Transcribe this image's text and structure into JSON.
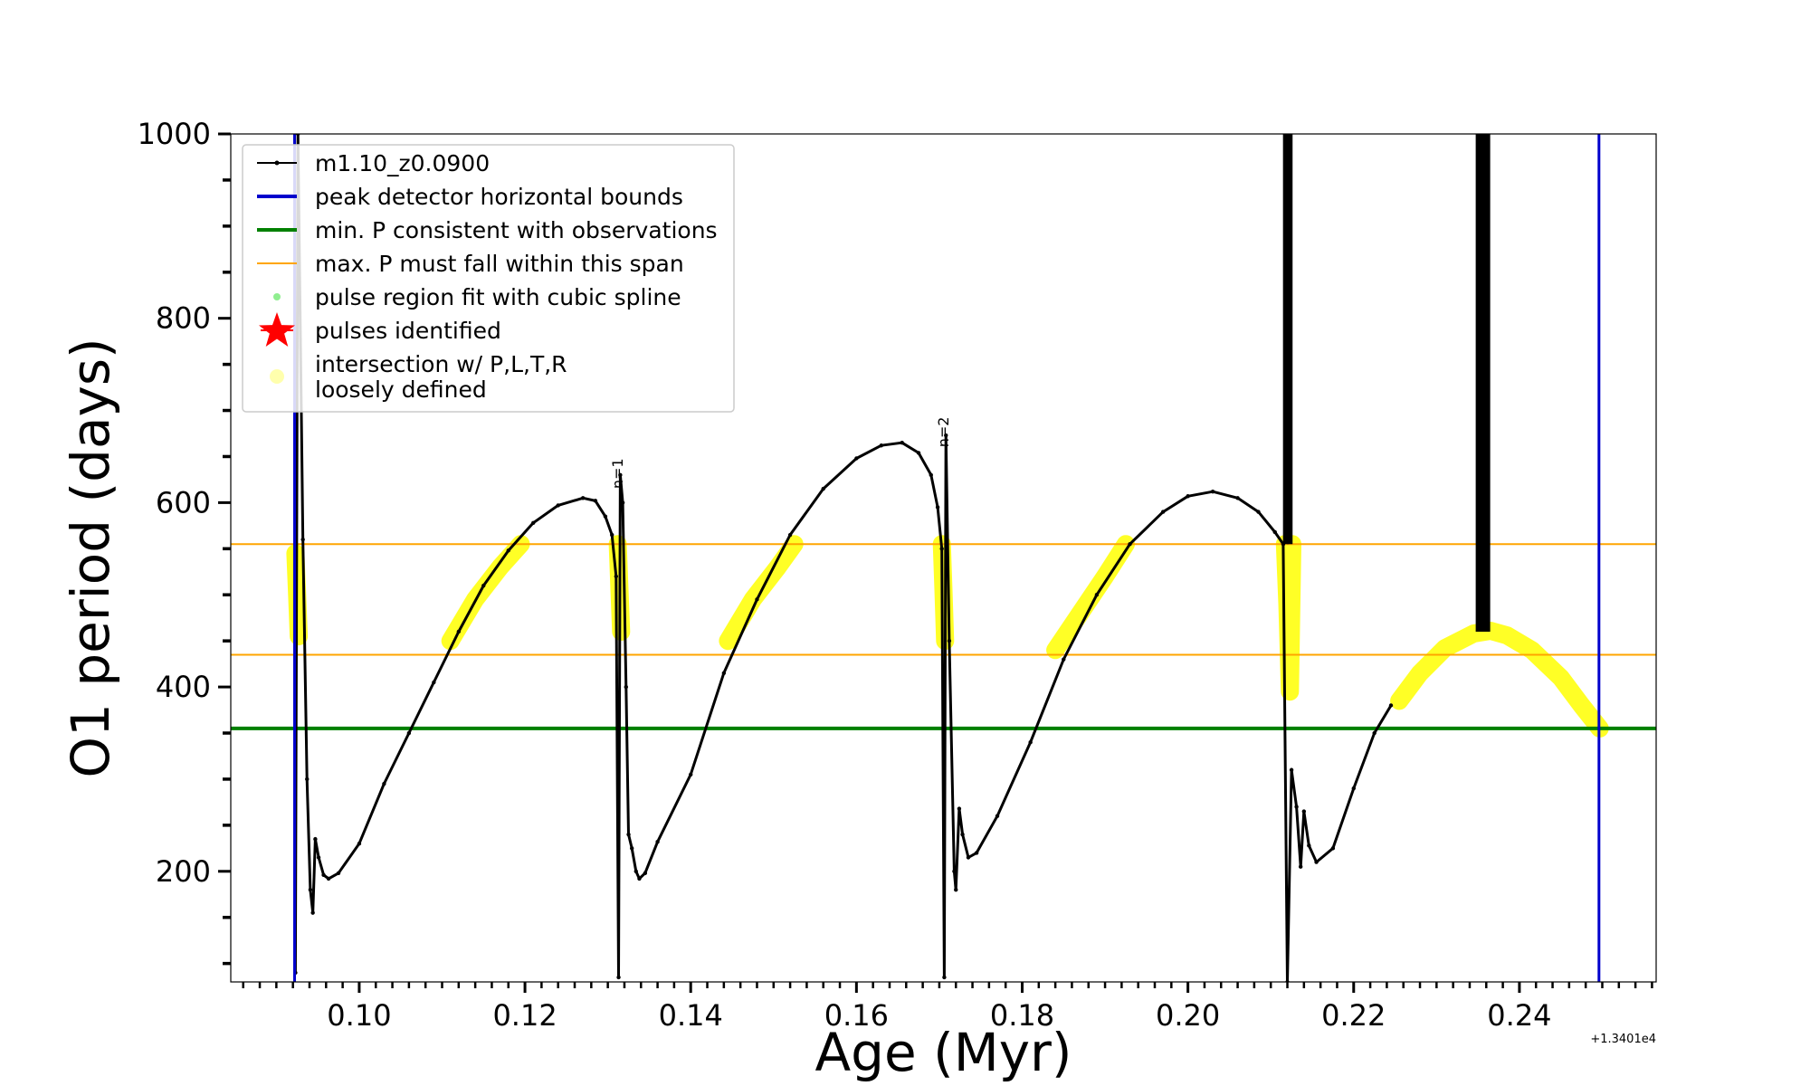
{
  "chart_data": {
    "type": "line",
    "xlabel": "Age (Myr)",
    "ylabel": "O1 period (days)",
    "x_offset_label": "+1.3401e4",
    "xlim": [
      0.0845,
      0.2565
    ],
    "ylim": [
      80,
      1000
    ],
    "x_ticks": [
      0.1,
      0.12,
      0.14,
      0.16,
      0.18,
      0.2,
      0.22,
      0.24
    ],
    "x_tick_labels": [
      "0.10",
      "0.12",
      "0.14",
      "0.16",
      "0.18",
      "0.20",
      "0.22",
      "0.24"
    ],
    "y_ticks": [
      200,
      400,
      600,
      800,
      1000
    ],
    "y_tick_labels": [
      "200",
      "400",
      "600",
      "800",
      "1000"
    ],
    "series": [
      {
        "name": "m1.10_z0.0900",
        "color": "#000000",
        "points": [
          [
            0.0923,
            90
          ],
          [
            0.0926,
            1000
          ],
          [
            0.0932,
            560
          ],
          [
            0.0937,
            300
          ],
          [
            0.0941,
            180
          ],
          [
            0.0944,
            155
          ],
          [
            0.0947,
            235
          ],
          [
            0.0951,
            215
          ],
          [
            0.0957,
            196
          ],
          [
            0.0963,
            192
          ],
          [
            0.0975,
            198
          ],
          [
            0.1,
            230
          ],
          [
            0.103,
            295
          ],
          [
            0.106,
            350
          ],
          [
            0.109,
            405
          ],
          [
            0.112,
            460
          ],
          [
            0.115,
            510
          ],
          [
            0.118,
            548
          ],
          [
            0.121,
            578
          ],
          [
            0.124,
            597
          ],
          [
            0.127,
            605
          ],
          [
            0.1285,
            602
          ],
          [
            0.1297,
            585
          ],
          [
            0.1305,
            565
          ],
          [
            0.131,
            520
          ],
          [
            0.1313,
            85
          ],
          [
            0.1315,
            630
          ],
          [
            0.1318,
            600
          ],
          [
            0.1322,
            400
          ],
          [
            0.1325,
            240
          ],
          [
            0.1329,
            225
          ],
          [
            0.1334,
            200
          ],
          [
            0.1338,
            192
          ],
          [
            0.1345,
            198
          ],
          [
            0.136,
            232
          ],
          [
            0.14,
            305
          ],
          [
            0.144,
            415
          ],
          [
            0.148,
            495
          ],
          [
            0.152,
            565
          ],
          [
            0.156,
            615
          ],
          [
            0.16,
            648
          ],
          [
            0.163,
            662
          ],
          [
            0.1655,
            665
          ],
          [
            0.1675,
            654
          ],
          [
            0.169,
            630
          ],
          [
            0.1698,
            595
          ],
          [
            0.1703,
            550
          ],
          [
            0.1706,
            85
          ],
          [
            0.1708,
            673
          ],
          [
            0.1712,
            450
          ],
          [
            0.1718,
            200
          ],
          [
            0.172,
            180
          ],
          [
            0.1724,
            268
          ],
          [
            0.1728,
            240
          ],
          [
            0.1735,
            215
          ],
          [
            0.1745,
            220
          ],
          [
            0.177,
            260
          ],
          [
            0.181,
            340
          ],
          [
            0.185,
            430
          ],
          [
            0.189,
            500
          ],
          [
            0.193,
            555
          ],
          [
            0.197,
            590
          ],
          [
            0.2,
            607
          ],
          [
            0.203,
            612
          ],
          [
            0.206,
            605
          ],
          [
            0.2085,
            590
          ],
          [
            0.2105,
            568
          ],
          [
            0.2115,
            555
          ],
          [
            0.212,
            80
          ],
          [
            0.2125,
            310
          ],
          [
            0.2131,
            270
          ],
          [
            0.2136,
            205
          ],
          [
            0.214,
            265
          ],
          [
            0.2146,
            228
          ],
          [
            0.2155,
            210
          ],
          [
            0.2175,
            225
          ],
          [
            0.22,
            290
          ],
          [
            0.2225,
            350
          ],
          [
            0.2245,
            380
          ]
        ]
      },
      {
        "name": "peak detector horizontal bounds",
        "color": "#0000cc",
        "x_values": [
          0.0922,
          0.2496
        ]
      },
      {
        "name": "min. P consistent with observations",
        "color": "#008000",
        "y_value": 355
      },
      {
        "name": "max. P must fall within this span",
        "color": "#ffa500",
        "y_values": [
          435,
          555
        ]
      },
      {
        "name": "pulse region fit with cubic spline",
        "color": "#90ee90",
        "points": []
      },
      {
        "name": "pulses identified",
        "color": "#ff0000",
        "points": []
      },
      {
        "name": "intersection w/ P,L,T,R\nloosely defined",
        "color": "#ffff00",
        "segments": [
          [
            [
              0.0923,
              545
            ],
            [
              0.0925,
              500
            ],
            [
              0.0927,
              455
            ]
          ],
          [
            [
              0.111,
              450
            ],
            [
              0.114,
              495
            ],
            [
              0.117,
              530
            ],
            [
              0.1195,
              555
            ]
          ],
          [
            [
              0.1312,
              555
            ],
            [
              0.1314,
              505
            ],
            [
              0.1316,
              460
            ]
          ],
          [
            [
              0.1445,
              450
            ],
            [
              0.1475,
              495
            ],
            [
              0.1505,
              530
            ],
            [
              0.1525,
              555
            ]
          ],
          [
            [
              0.1703,
              555
            ],
            [
              0.1705,
              505
            ],
            [
              0.1707,
              450
            ]
          ],
          [
            [
              0.184,
              440
            ],
            [
              0.187,
              480
            ],
            [
              0.19,
              520
            ],
            [
              0.1925,
              555
            ]
          ],
          [
            [
              0.2117,
              555
            ],
            [
              0.212,
              490
            ],
            [
              0.2123,
              395
            ],
            [
              0.2126,
              555
            ]
          ],
          [
            [
              0.2255,
              385
            ],
            [
              0.228,
              415
            ],
            [
              0.231,
              442
            ],
            [
              0.2345,
              458
            ],
            [
              0.2365,
              461
            ],
            [
              0.2385,
              456
            ],
            [
              0.2415,
              440
            ],
            [
              0.245,
              410
            ],
            [
              0.2475,
              380
            ],
            [
              0.2497,
              355
            ]
          ]
        ]
      }
    ],
    "thick_vertical_bars": [
      {
        "x": 0.2118,
        "y_range": [
          555,
          1000
        ]
      },
      {
        "x": 0.2123,
        "y_range": [
          555,
          1000
        ]
      },
      {
        "x": 0.2356,
        "y_range": [
          460,
          1000
        ]
      }
    ],
    "annotations": [
      {
        "text": "n=1",
        "x": 0.1318,
        "y": 615
      },
      {
        "text": "n=2",
        "x": 0.1711,
        "y": 660
      }
    ],
    "legend_position": "upper left"
  }
}
